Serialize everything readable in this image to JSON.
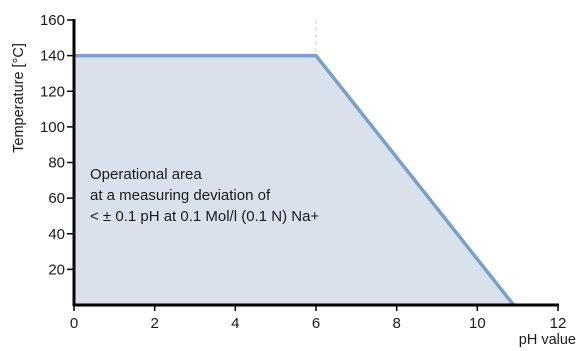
{
  "chart_data": {
    "type": "area",
    "title": "",
    "xlabel": "pH value",
    "ylabel": "Temperature [°C]",
    "xlim": [
      0,
      12
    ],
    "ylim": [
      0,
      160
    ],
    "xticks": [
      0,
      2,
      4,
      6,
      8,
      10,
      12
    ],
    "yticks": [
      20,
      40,
      60,
      80,
      100,
      120,
      140,
      160
    ],
    "grid": false,
    "series": [
      {
        "x": [
          0,
          6,
          10.9
        ],
        "y": [
          140,
          140,
          0
        ]
      }
    ],
    "reference_lines": [
      {
        "axis": "x",
        "value": 6,
        "style": "dashed"
      }
    ],
    "annotation": {
      "lines": [
        "Operational area",
        "at a measuring deviation of",
        "< ± 0.1 pH at 0.1 Mol/l (0.1 N) Na+"
      ]
    },
    "colors": {
      "line": "#7a9fcb",
      "fill": "#d9e2ec",
      "axis": "#000000"
    }
  }
}
